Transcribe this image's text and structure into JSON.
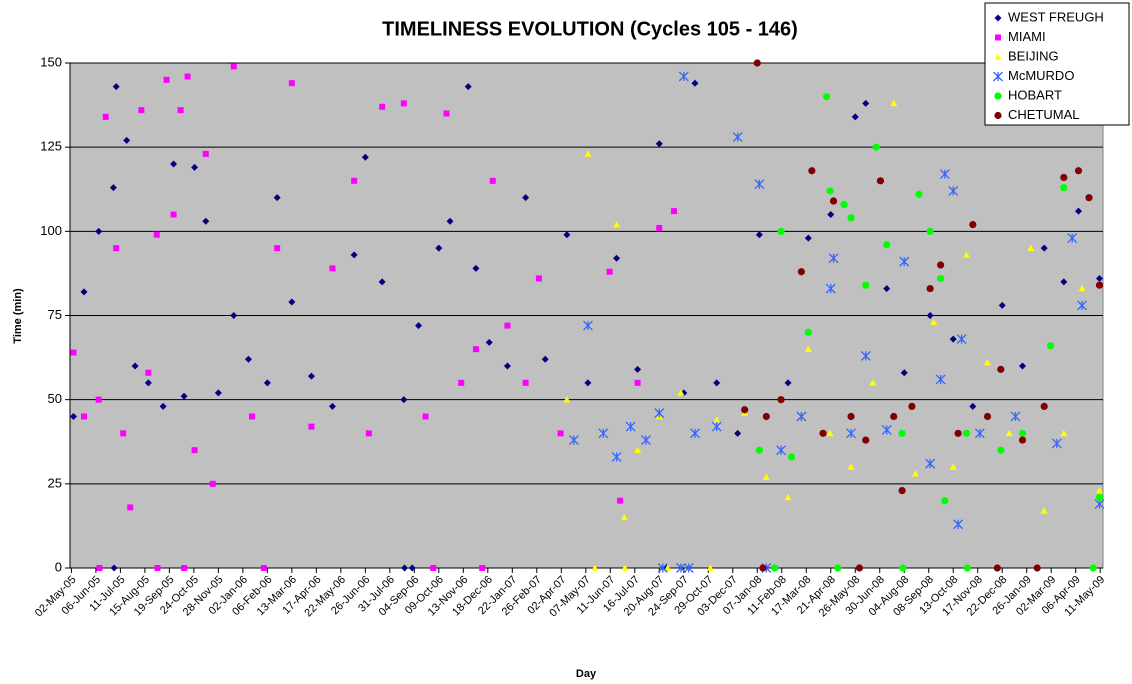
{
  "chart_data": {
    "type": "scatter",
    "title": "TIMELINESS EVOLUTION (Cycles 105 - 146)",
    "x_label": "Day",
    "y_label": "Time (min)",
    "xlim": [
      "2005-04-30",
      "2009-05-15"
    ],
    "ylim": [
      0,
      150
    ],
    "yticks": [
      0,
      25,
      50,
      75,
      100,
      125,
      150
    ],
    "grid": true,
    "legend": "top-right",
    "xticks": [
      {
        "value": "2005-05-02",
        "label": "02-May-05"
      },
      {
        "value": "2005-06-06",
        "label": "06-Jun-05"
      },
      {
        "value": "2005-07-11",
        "label": "11-Jul-05"
      },
      {
        "value": "2005-08-15",
        "label": "15-Aug-05"
      },
      {
        "value": "2005-09-19",
        "label": "19-Sep-05"
      },
      {
        "value": "2005-10-24",
        "label": "24-Oct-05"
      },
      {
        "value": "2005-11-28",
        "label": "28-Nov-05"
      },
      {
        "value": "2006-01-02",
        "label": "02-Jan-06"
      },
      {
        "value": "2006-02-06",
        "label": "06-Feb-06"
      },
      {
        "value": "2006-03-13",
        "label": "13-Mar-06"
      },
      {
        "value": "2006-04-17",
        "label": "17-Apr-06"
      },
      {
        "value": "2006-05-22",
        "label": "22-May-06"
      },
      {
        "value": "2006-06-26",
        "label": "26-Jun-06"
      },
      {
        "value": "2006-07-31",
        "label": "31-Jul-06"
      },
      {
        "value": "2006-09-04",
        "label": "04-Sep-06"
      },
      {
        "value": "2006-10-09",
        "label": "09-Oct-06"
      },
      {
        "value": "2006-11-13",
        "label": "13-Nov-06"
      },
      {
        "value": "2006-12-18",
        "label": "18-Dec-06"
      },
      {
        "value": "2007-01-22",
        "label": "22-Jan-07"
      },
      {
        "value": "2007-02-26",
        "label": "26-Feb-07"
      },
      {
        "value": "2007-04-02",
        "label": "02-Apr-07"
      },
      {
        "value": "2007-05-07",
        "label": "07-May-07"
      },
      {
        "value": "2007-06-11",
        "label": "11-Jun-07"
      },
      {
        "value": "2007-07-16",
        "label": "16-Jul-07"
      },
      {
        "value": "2007-08-20",
        "label": "20-Aug-07"
      },
      {
        "value": "2007-09-24",
        "label": "24-Sep-07"
      },
      {
        "value": "2007-10-29",
        "label": "29-Oct-07"
      },
      {
        "value": "2007-12-03",
        "label": "03-Dec-07"
      },
      {
        "value": "2008-01-07",
        "label": "07-Jan-08"
      },
      {
        "value": "2008-02-11",
        "label": "11-Feb-08"
      },
      {
        "value": "2008-03-17",
        "label": "17-Mar-08"
      },
      {
        "value": "2008-04-21",
        "label": "21-Apr-08"
      },
      {
        "value": "2008-05-26",
        "label": "26-May-08"
      },
      {
        "value": "2008-06-30",
        "label": "30-Jun-08"
      },
      {
        "value": "2008-08-04",
        "label": "04-Aug-08"
      },
      {
        "value": "2008-09-08",
        "label": "08-Sep-08"
      },
      {
        "value": "2008-10-13",
        "label": "13-Oct-08"
      },
      {
        "value": "2008-11-17",
        "label": "17-Nov-08"
      },
      {
        "value": "2008-12-22",
        "label": "22-Dec-08"
      },
      {
        "value": "2009-01-26",
        "label": "26-Jan-09"
      },
      {
        "value": "2009-03-02",
        "label": "02-Mar-09"
      },
      {
        "value": "2009-04-06",
        "label": "06-Apr-09"
      },
      {
        "value": "2009-05-11",
        "label": "11-May-09"
      }
    ],
    "series": [
      {
        "name": "WEST FREUGH",
        "color": "#000080",
        "marker": "diamond",
        "x": [
          "2005-05-05",
          "2005-05-20",
          "2005-06-10",
          "2005-07-01",
          "2005-07-05",
          "2005-07-20",
          "2005-08-01",
          "2005-08-20",
          "2005-09-10",
          "2005-09-25",
          "2005-10-10",
          "2005-10-25",
          "2005-11-10",
          "2005-11-28",
          "2005-12-20",
          "2006-01-10",
          "2006-02-06",
          "2006-02-20",
          "2006-03-13",
          "2006-04-10",
          "2006-05-10",
          "2006-06-10",
          "2006-06-26",
          "2006-07-20",
          "2006-08-20",
          "2006-09-10",
          "2006-10-09",
          "2006-10-25",
          "2006-11-20",
          "2006-12-01",
          "2006-12-20",
          "2007-01-15",
          "2007-02-10",
          "2007-03-10",
          "2007-04-10",
          "2007-05-10",
          "2007-06-20",
          "2007-07-20",
          "2007-08-20",
          "2007-09-24",
          "2007-10-10",
          "2007-11-10",
          "2007-12-10",
          "2008-01-10",
          "2008-02-20",
          "2008-03-20",
          "2008-04-21",
          "2008-05-26",
          "2008-06-10",
          "2008-07-10",
          "2008-08-04",
          "2008-09-10",
          "2008-10-13",
          "2008-11-10",
          "2008-12-22",
          "2009-01-20",
          "2009-02-20",
          "2009-03-20",
          "2009-04-10",
          "2009-05-10",
          "2005-07-02",
          "2006-08-21",
          "2006-09-01",
          "2007-08-30"
        ],
        "values": [
          45,
          82,
          100,
          113,
          143,
          127,
          60,
          55,
          48,
          120,
          51,
          119,
          103,
          52,
          75,
          62,
          55,
          110,
          79,
          57,
          48,
          93,
          122,
          85,
          50,
          72,
          95,
          103,
          143,
          89,
          67,
          60,
          110,
          62,
          99,
          55,
          92,
          59,
          126,
          52,
          144,
          55,
          40,
          99,
          55,
          98,
          105,
          134,
          138,
          83,
          58,
          75,
          68,
          48,
          78,
          60,
          95,
          85,
          106,
          86,
          0,
          0,
          0,
          0
        ]
      },
      {
        "name": "MIAMI",
        "color": "#FF00FF",
        "marker": "square",
        "x": [
          "2005-05-05",
          "2005-05-20",
          "2005-06-10",
          "2005-06-20",
          "2005-07-05",
          "2005-07-15",
          "2005-07-25",
          "2005-08-10",
          "2005-08-20",
          "2005-09-01",
          "2005-09-15",
          "2005-09-25",
          "2005-10-05",
          "2005-10-15",
          "2005-10-25",
          "2005-11-10",
          "2005-11-20",
          "2005-12-20",
          "2006-01-15",
          "2006-02-20",
          "2006-03-13",
          "2006-04-10",
          "2006-05-10",
          "2006-06-10",
          "2006-07-01",
          "2006-07-20",
          "2006-08-20",
          "2006-09-20",
          "2006-10-20",
          "2006-11-10",
          "2006-12-01",
          "2006-12-25",
          "2007-01-15",
          "2007-02-10",
          "2007-03-01",
          "2007-04-01",
          "2007-06-10",
          "2007-06-25",
          "2007-07-20",
          "2007-08-20",
          "2007-09-10",
          "2005-06-11",
          "2005-09-02",
          "2005-10-10",
          "2006-02-01",
          "2006-10-01",
          "2006-12-10"
        ],
        "values": [
          64,
          45,
          50,
          134,
          95,
          40,
          18,
          136,
          58,
          99,
          145,
          105,
          136,
          146,
          35,
          123,
          25,
          149,
          45,
          95,
          144,
          42,
          89,
          115,
          40,
          137,
          138,
          45,
          135,
          55,
          65,
          115,
          72,
          55,
          86,
          40,
          88,
          20,
          55,
          101,
          106,
          0,
          0,
          0,
          0,
          0,
          0
        ]
      },
      {
        "name": "BEIJING",
        "color": "#FFFF00",
        "marker": "triangle",
        "x": [
          "2007-04-10",
          "2007-05-10",
          "2007-06-01",
          "2007-06-20",
          "2007-07-01",
          "2007-07-20",
          "2007-08-20",
          "2007-09-20",
          "2007-11-10",
          "2007-12-20",
          "2008-01-20",
          "2008-02-20",
          "2008-03-20",
          "2008-04-20",
          "2008-05-20",
          "2008-06-20",
          "2008-07-20",
          "2008-08-20",
          "2008-09-15",
          "2008-10-13",
          "2008-11-01",
          "2008-12-01",
          "2009-01-01",
          "2009-02-01",
          "2009-02-20",
          "2009-03-20",
          "2009-04-15",
          "2009-05-10",
          "2007-05-20",
          "2007-07-02",
          "2007-09-01",
          "2007-11-01"
        ],
        "values": [
          50,
          123,
          40,
          102,
          15,
          35,
          45,
          52,
          44,
          46,
          27,
          21,
          65,
          40,
          30,
          55,
          138,
          28,
          73,
          30,
          93,
          61,
          40,
          95,
          17,
          40,
          83,
          23,
          0,
          0,
          0,
          0
        ]
      },
      {
        "name": "McMURDO",
        "color": "#3366FF",
        "marker": "asterisk",
        "x": [
          "2007-04-20",
          "2007-05-10",
          "2007-06-01",
          "2007-06-20",
          "2007-07-10",
          "2007-08-01",
          "2007-08-20",
          "2007-09-24",
          "2007-10-10",
          "2007-11-10",
          "2007-12-10",
          "2008-01-10",
          "2008-02-10",
          "2008-03-10",
          "2008-04-21",
          "2008-04-25",
          "2008-05-20",
          "2008-06-10",
          "2008-07-10",
          "2008-08-04",
          "2008-09-10",
          "2008-09-25",
          "2008-10-01",
          "2008-10-13",
          "2008-10-20",
          "2008-10-25",
          "2008-11-20",
          "2009-01-10",
          "2009-03-10",
          "2009-04-01",
          "2009-04-15",
          "2009-05-10",
          "2007-08-25",
          "2007-09-20",
          "2007-10-01",
          "2008-01-20"
        ],
        "values": [
          38,
          72,
          40,
          33,
          42,
          38,
          46,
          146,
          40,
          42,
          128,
          114,
          35,
          45,
          83,
          92,
          40,
          63,
          41,
          91,
          31,
          56,
          117,
          112,
          13,
          68,
          40,
          45,
          37,
          98,
          78,
          19,
          0,
          0,
          0,
          0
        ]
      },
      {
        "name": "HOBART",
        "color": "#00FF00",
        "marker": "circle",
        "x": [
          "2008-01-10",
          "2008-02-10",
          "2008-02-25",
          "2008-03-20",
          "2008-04-15",
          "2008-04-20",
          "2008-05-10",
          "2008-05-20",
          "2008-06-10",
          "2008-06-25",
          "2008-07-10",
          "2008-08-01",
          "2008-08-25",
          "2008-09-10",
          "2008-09-25",
          "2008-10-01",
          "2008-11-01",
          "2008-12-20",
          "2009-01-20",
          "2009-03-01",
          "2009-03-20",
          "2009-05-10",
          "2008-02-01",
          "2008-05-01",
          "2008-08-02",
          "2008-11-02",
          "2009-05-01"
        ],
        "values": [
          35,
          100,
          33,
          70,
          140,
          112,
          108,
          104,
          84,
          125,
          96,
          40,
          111,
          100,
          86,
          20,
          40,
          35,
          40,
          66,
          113,
          21,
          0,
          0,
          0,
          0,
          0
        ]
      },
      {
        "name": "CHETUMAL",
        "color": "#800000",
        "marker": "circle",
        "x": [
          "2007-12-20",
          "2008-01-07",
          "2008-01-20",
          "2008-02-10",
          "2008-03-10",
          "2008-03-25",
          "2008-04-10",
          "2008-04-25",
          "2008-05-20",
          "2008-06-10",
          "2008-07-01",
          "2008-07-20",
          "2008-08-01",
          "2008-08-15",
          "2008-09-10",
          "2008-09-25",
          "2008-10-20",
          "2008-11-10",
          "2008-12-01",
          "2008-12-20",
          "2009-01-20",
          "2009-02-20",
          "2009-03-20",
          "2009-04-10",
          "2009-04-25",
          "2009-05-10",
          "2008-01-15",
          "2008-06-01",
          "2008-12-15",
          "2009-02-10"
        ],
        "values": [
          47,
          150,
          45,
          50,
          88,
          118,
          40,
          109,
          45,
          38,
          115,
          45,
          23,
          48,
          83,
          90,
          40,
          102,
          45,
          59,
          38,
          48,
          116,
          118,
          110,
          84,
          0,
          0,
          0,
          0
        ]
      }
    ]
  }
}
